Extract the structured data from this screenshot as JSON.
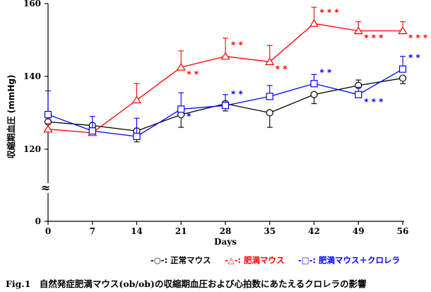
{
  "chart_data": {
    "type": "line",
    "x": [
      0,
      7,
      14,
      21,
      28,
      35,
      42,
      49,
      56
    ],
    "x_ticks": [
      "0",
      "7",
      "14",
      "21",
      "28",
      "35",
      "42",
      "49",
      "56"
    ],
    "xlabel": "Days",
    "ylabel": "収縮期血圧 (mmHg)",
    "y_ticks": [
      "0",
      "120",
      "140",
      "160"
    ],
    "y_axis_break": "≈",
    "ylim": [
      120,
      160
    ],
    "grid": false,
    "legend_position": "bottom",
    "series": [
      {
        "name": "正常マウス",
        "legend_label": "-○-: 正常マウス",
        "color": "#000000",
        "marker": "circle",
        "values": [
          127.5,
          126.5,
          125,
          129.5,
          132.5,
          130,
          135,
          137.5,
          139.5
        ],
        "errors": [
          2.5,
          1,
          3,
          3.5,
          2,
          4,
          2.5,
          1.5,
          1.5
        ],
        "error_dir": [
          "down",
          "down",
          "down",
          "down",
          "down",
          "down",
          "down",
          "up",
          "down"
        ]
      },
      {
        "name": "肥満マウス",
        "legend_label": "-△-: 肥満マウス",
        "color": "#ff0000",
        "marker": "triangle",
        "values": [
          125.5,
          124.5,
          133.5,
          142.5,
          145.5,
          144,
          154.5,
          152.5,
          152.5
        ],
        "errors": [
          1.5,
          1,
          4.5,
          4.5,
          5,
          4.5,
          4.5,
          2.5,
          2.5
        ],
        "error_dir": [
          "up",
          "up",
          "up",
          "up",
          "up",
          "up",
          "up",
          "up",
          "up"
        ],
        "significance": [
          "",
          "",
          "",
          "* *",
          "* *",
          "* *",
          "* * *",
          "* * *",
          "* * *"
        ],
        "significance_pos": [
          "",
          "",
          "",
          "below",
          "above",
          "below",
          "above",
          "below",
          "below"
        ]
      },
      {
        "name": "肥満マウス＋クロレラ",
        "legend_label": "-□-: 肥満マウス＋クロレラ",
        "color": "#0000ff",
        "marker": "square",
        "values": [
          129.5,
          125,
          123.5,
          131,
          132,
          134.5,
          138,
          135,
          142
        ],
        "errors": [
          6.5,
          4,
          5,
          4.5,
          3,
          3,
          2.5,
          2,
          3.5
        ],
        "error_dir": [
          "up",
          "up",
          "up",
          "up",
          "up",
          "up",
          "up",
          "up",
          "up"
        ],
        "significance": [
          "",
          "",
          "",
          "*",
          "* *",
          "",
          "* *",
          "* * *",
          "* *"
        ],
        "significance_pos": [
          "",
          "",
          "",
          "below",
          "above",
          "",
          "above",
          "below",
          "above"
        ]
      }
    ]
  },
  "caption": "Fig.1　自然発症肥満マウス(ob/ob)の収縮期血圧および心拍数にあたえるクロレラの影響"
}
